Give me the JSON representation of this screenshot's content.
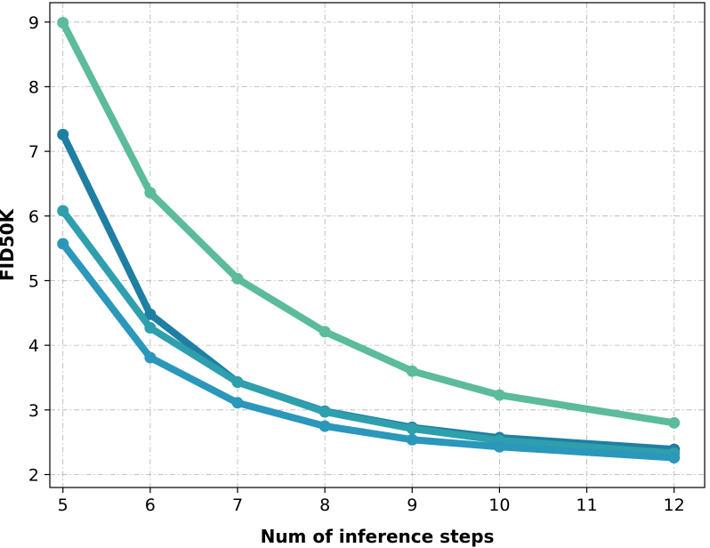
{
  "chart_data": {
    "type": "line",
    "title": "",
    "xlabel": "Num of inference steps",
    "ylabel": "FID50K",
    "xlim": [
      4.85,
      12.35
    ],
    "ylim": [
      1.8,
      9.3
    ],
    "xticks": [
      5,
      6,
      7,
      8,
      9,
      10,
      11,
      12
    ],
    "yticks": [
      2,
      3,
      4,
      5,
      6,
      7,
      8,
      9
    ],
    "grid": true,
    "legend": "none",
    "series": [
      {
        "color": "#5bbb9a",
        "x": [
          5,
          6,
          7,
          8,
          9,
          10,
          12
        ],
        "y": [
          8.99,
          6.36,
          5.03,
          4.21,
          3.6,
          3.23,
          2.8
        ]
      },
      {
        "color": "#1f7ea3",
        "x": [
          5,
          6,
          7,
          8,
          9,
          10,
          12
        ],
        "y": [
          7.26,
          4.48,
          3.43,
          2.98,
          2.73,
          2.57,
          2.39
        ]
      },
      {
        "color": "#2e9fad",
        "x": [
          5,
          6,
          7,
          8,
          9,
          10,
          12
        ],
        "y": [
          6.08,
          4.27,
          3.43,
          2.97,
          2.71,
          2.53,
          2.33
        ]
      },
      {
        "color": "#2a97bb",
        "x": [
          5,
          6,
          7,
          8,
          9,
          10,
          12
        ],
        "y": [
          5.57,
          3.81,
          3.11,
          2.75,
          2.54,
          2.43,
          2.26
        ]
      }
    ]
  }
}
